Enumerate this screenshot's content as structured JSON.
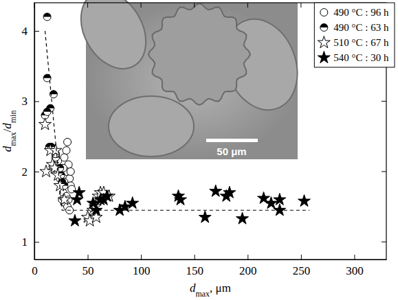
{
  "chart_data": {
    "type": "scatter",
    "x_label": "dmax, μm",
    "y_label": "dmax/dmin",
    "xlim": [
      0,
      330
    ],
    "ylim": [
      0.75,
      4.4
    ],
    "xticks": [
      0,
      50,
      100,
      150,
      200,
      250,
      300
    ],
    "yticks": [
      1,
      2,
      3,
      4
    ],
    "legend": "upper right",
    "annotations": [
      "50 μm"
    ],
    "series": [
      {
        "name": "490 °C : 96 h",
        "color": "#000000",
        "marker": "circle-open",
        "x": [
          31,
          30,
          28,
          32,
          30,
          33,
          28,
          34,
          27,
          30,
          32,
          29,
          31,
          33,
          26,
          35,
          24,
          27,
          22,
          34
        ],
        "values": [
          2.42,
          2.3,
          2.2,
          2.1,
          2.0,
          1.9,
          1.85,
          1.8,
          1.7,
          1.65,
          1.6,
          1.55,
          1.5,
          1.45,
          1.6,
          1.75,
          1.9,
          2.05,
          2.15,
          2.0
        ]
      },
      {
        "name": "490 °C : 63 h",
        "color": "#000000",
        "marker": "circle-half",
        "x": [
          12,
          12,
          15,
          18,
          10,
          12,
          14,
          16,
          20,
          22,
          25,
          24,
          26,
          28,
          20
        ],
        "values": [
          4.2,
          3.33,
          2.9,
          3.1,
          2.8,
          2.85,
          2.35,
          2.35,
          2.2,
          2.0,
          1.95,
          2.05,
          1.85,
          1.8,
          2.25
        ]
      },
      {
        "name": "510 °C : 67 h",
        "color": "#000000",
        "marker": "star-open",
        "x": [
          10,
          11,
          15,
          17,
          19,
          22,
          24,
          28,
          50,
          52,
          55,
          58,
          60,
          62,
          65,
          57,
          70,
          20
        ],
        "values": [
          2.67,
          2.0,
          2.3,
          2.1,
          2.05,
          1.95,
          1.8,
          1.6,
          1.35,
          1.3,
          1.45,
          1.35,
          1.65,
          1.7,
          1.7,
          1.5,
          1.65,
          2.3
        ]
      },
      {
        "name": "540 °C : 30 h",
        "color": "#000000",
        "marker": "star-filled",
        "x": [
          38,
          40,
          58,
          62,
          68,
          80,
          85,
          92,
          135,
          137,
          160,
          170,
          180,
          183,
          195,
          215,
          222,
          230,
          230,
          253,
          42,
          55,
          65
        ],
        "values": [
          1.3,
          1.6,
          1.45,
          1.6,
          1.65,
          1.45,
          1.5,
          1.55,
          1.65,
          1.6,
          1.35,
          1.72,
          1.65,
          1.7,
          1.33,
          1.62,
          1.55,
          1.6,
          1.45,
          1.58,
          1.7,
          1.55,
          1.6
        ]
      },
      {
        "type": "line",
        "line_style": "dashed",
        "color": "#000000",
        "x": [
          10,
          26,
          258
        ],
        "values": [
          4.0,
          1.45,
          1.45
        ]
      }
    ]
  }
}
